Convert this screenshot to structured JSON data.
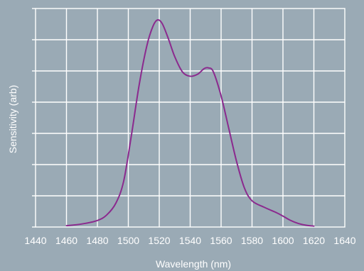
{
  "chart_data": {
    "type": "line",
    "title": "",
    "xlabel": "Wavelength (nm)",
    "ylabel": "Sensitivity (arb)",
    "xlim": [
      1440,
      1640
    ],
    "x_ticks": [
      1440,
      1460,
      1480,
      1500,
      1520,
      1540,
      1560,
      1580,
      1600,
      1620,
      1640
    ],
    "ylim": [
      0,
      1
    ],
    "y_tick_count": 7,
    "y_tick_labels_shown": false,
    "grid": true,
    "background_color": "#9aaab5",
    "grid_color": "#ffffff",
    "series": [
      {
        "color": "#8b2a8e",
        "x": [
          1460,
          1470,
          1480,
          1486,
          1492,
          1497,
          1502,
          1507,
          1512,
          1516,
          1519,
          1522,
          1526,
          1530,
          1535,
          1540,
          1545,
          1549,
          1552,
          1555,
          1560,
          1565,
          1570,
          1575,
          1580,
          1588,
          1596,
          1600,
          1605,
          1610,
          1615,
          1620
        ],
        "y": [
          0.006,
          0.014,
          0.03,
          0.055,
          0.11,
          0.21,
          0.42,
          0.65,
          0.83,
          0.92,
          0.948,
          0.93,
          0.86,
          0.78,
          0.71,
          0.69,
          0.7,
          0.725,
          0.728,
          0.71,
          0.6,
          0.45,
          0.3,
          0.18,
          0.12,
          0.09,
          0.065,
          0.05,
          0.03,
          0.016,
          0.008,
          0.004
        ]
      }
    ]
  }
}
